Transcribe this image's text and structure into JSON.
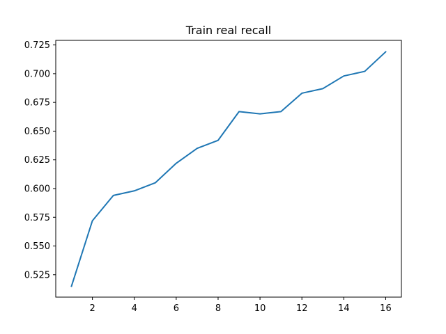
{
  "chart_data": {
    "type": "line",
    "title": "Train real recall",
    "xlabel": "",
    "ylabel": "",
    "xlim": [
      0.25,
      16.75
    ],
    "ylim": [
      0.5055,
      0.729
    ],
    "x_ticks": [
      2,
      4,
      6,
      8,
      10,
      12,
      14,
      16
    ],
    "x_tick_labels": [
      "2",
      "4",
      "6",
      "8",
      "10",
      "12",
      "14",
      "16"
    ],
    "y_ticks": [
      0.525,
      0.55,
      0.575,
      0.6,
      0.625,
      0.65,
      0.675,
      0.7,
      0.725
    ],
    "y_tick_labels": [
      "0.525",
      "0.550",
      "0.575",
      "0.600",
      "0.625",
      "0.650",
      "0.675",
      "0.700",
      "0.725"
    ],
    "grid": false,
    "series": [
      {
        "color": "#1f77b4",
        "x": [
          1,
          2,
          3,
          4,
          5,
          6,
          7,
          8,
          9,
          10,
          11,
          12,
          13,
          14,
          15,
          16
        ],
        "y": [
          0.515,
          0.572,
          0.594,
          0.598,
          0.605,
          0.622,
          0.635,
          0.642,
          0.667,
          0.665,
          0.667,
          0.683,
          0.687,
          0.698,
          0.702,
          0.719
        ]
      }
    ]
  }
}
